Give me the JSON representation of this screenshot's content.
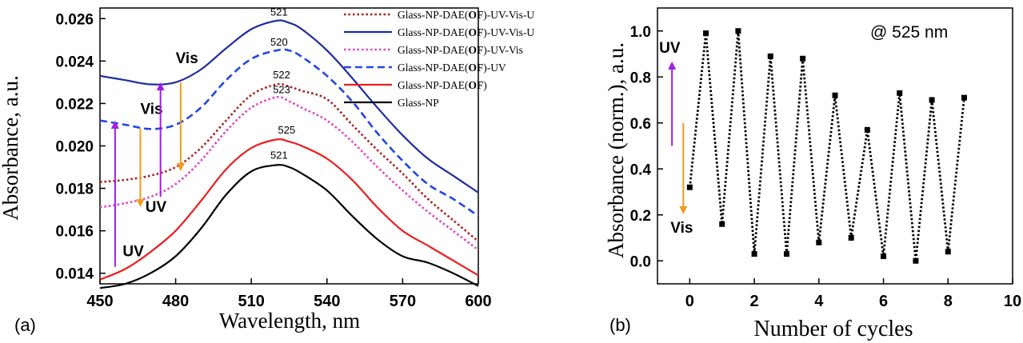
{
  "colors": {
    "dark_red": "#b01c1c",
    "navy": "#1f2c9e",
    "magenta": "#e83fbf",
    "blue": "#2147e6",
    "red": "#ee1c1c",
    "black": "#000000",
    "purple": "#a21ee0",
    "orange": "#f29a1f"
  },
  "chart_data": [
    {
      "type": "line",
      "panel_label": "(a)",
      "xlabel": "Wavelength, nm",
      "ylabel": "Absorbance, a.u.",
      "xlim": [
        450,
        600
      ],
      "ylim": [
        0.0135,
        0.0265
      ],
      "xticks": [
        "450",
        "480",
        "510",
        "540",
        "570",
        "600"
      ],
      "yticks": [
        "0.014",
        "0.016",
        "0.018",
        "0.020",
        "0.022",
        "0.024",
        "0.026"
      ],
      "legend_position": "top-right",
      "series": [
        {
          "name": "Glass-NP-DAE(OF)-UV-Vis-U",
          "name_parts": [
            "Glass-NP-DAE(",
            "OF",
            ")-UV-Vis-U"
          ],
          "style": "dotted",
          "color": "#b01c1c",
          "x": [
            450,
            460,
            470,
            480,
            490,
            500,
            510,
            520,
            525,
            530,
            540,
            550,
            560,
            570,
            580,
            590,
            600
          ],
          "y": [
            0.0183,
            0.0184,
            0.0186,
            0.019,
            0.0199,
            0.0212,
            0.0224,
            0.0229,
            0.0228,
            0.0226,
            0.0222,
            0.021,
            0.0198,
            0.0187,
            0.0175,
            0.0165,
            0.0155
          ]
        },
        {
          "name": "Glass-NP-DAE(OF)-UV-Vis-U",
          "name_parts": [
            "Glass-NP-DAE(",
            "OF",
            ")-UV-Vis-U"
          ],
          "style": "solid",
          "color": "#1f2c9e",
          "x": [
            450,
            460,
            470,
            480,
            490,
            500,
            510,
            520,
            525,
            530,
            540,
            550,
            560,
            570,
            580,
            590,
            600
          ],
          "y": [
            0.0233,
            0.0231,
            0.0229,
            0.023,
            0.0236,
            0.0246,
            0.0255,
            0.0259,
            0.0258,
            0.0255,
            0.0245,
            0.0232,
            0.0218,
            0.0205,
            0.0194,
            0.0186,
            0.0178
          ]
        },
        {
          "name": "Glass-NP-DAE(OF)-UV-Vis",
          "name_parts": [
            "Glass-NP-DAE(",
            "OF",
            ")-UV-Vis"
          ],
          "style": "dotted",
          "color": "#e83fbf",
          "x": [
            450,
            460,
            470,
            480,
            490,
            500,
            510,
            520,
            525,
            530,
            540,
            550,
            560,
            570,
            580,
            590,
            600
          ],
          "y": [
            0.0171,
            0.0173,
            0.0176,
            0.0182,
            0.0193,
            0.0207,
            0.0218,
            0.0223,
            0.0221,
            0.0218,
            0.0212,
            0.0202,
            0.019,
            0.0179,
            0.0169,
            0.016,
            0.0151
          ]
        },
        {
          "name": "Glass-NP-DAE(OF)-UV",
          "name_parts": [
            "Glass-NP-DAE(",
            "OF",
            ")-UV"
          ],
          "style": "dashed",
          "color": "#2147e6",
          "x": [
            450,
            460,
            470,
            480,
            490,
            500,
            510,
            520,
            525,
            530,
            540,
            550,
            560,
            570,
            580,
            590,
            600
          ],
          "y": [
            0.0212,
            0.021,
            0.0208,
            0.021,
            0.0218,
            0.0231,
            0.0241,
            0.0245,
            0.0245,
            0.0242,
            0.0233,
            0.0221,
            0.0206,
            0.0193,
            0.0182,
            0.0175,
            0.0167
          ]
        },
        {
          "name": "Glass-NP-DAE(OF)",
          "name_parts": [
            "Glass-NP-DAE(",
            "OF",
            ")"
          ],
          "style": "solid",
          "color": "#ee1c1c",
          "x": [
            450,
            460,
            470,
            480,
            490,
            500,
            510,
            520,
            525,
            530,
            540,
            550,
            560,
            570,
            580,
            590,
            600
          ],
          "y": [
            0.0137,
            0.0142,
            0.015,
            0.016,
            0.0174,
            0.0189,
            0.0199,
            0.0203,
            0.0202,
            0.02,
            0.0194,
            0.0184,
            0.0171,
            0.016,
            0.0153,
            0.0146,
            0.0139
          ]
        },
        {
          "name": "Glass-NP",
          "name_parts": [
            "Glass-NP",
            "",
            ""
          ],
          "style": "solid",
          "color": "#000000",
          "x": [
            450,
            460,
            470,
            480,
            490,
            500,
            510,
            520,
            525,
            530,
            540,
            550,
            560,
            570,
            580,
            590,
            600
          ],
          "y": [
            0.0133,
            0.0135,
            0.014,
            0.0148,
            0.0161,
            0.0177,
            0.0188,
            0.0191,
            0.019,
            0.0187,
            0.0179,
            0.0167,
            0.0156,
            0.0148,
            0.0145,
            0.014,
            0.0134
          ]
        }
      ],
      "peak_labels": [
        {
          "text": "521",
          "x": 521,
          "y": 0.02595
        },
        {
          "text": "520",
          "x": 521,
          "y": 0.02455
        },
        {
          "text": "522",
          "x": 522,
          "y": 0.023
        },
        {
          "text": "523",
          "x": 522,
          "y": 0.0223
        },
        {
          "text": "525",
          "x": 524,
          "y": 0.0204
        },
        {
          "text": "521",
          "x": 521,
          "y": 0.0192
        }
      ],
      "annotations": [
        {
          "text": "UV",
          "x": 459,
          "y": 0.0148,
          "color": "#a21ee0",
          "arrow": {
            "x": 456,
            "from": 0.0143,
            "to": 0.021
          }
        },
        {
          "text": "Vis",
          "x": 466,
          "y": 0.0215,
          "color": "#f29a1f",
          "arrow": {
            "x": 466,
            "from": 0.0208,
            "to": 0.0173
          }
        },
        {
          "text": "UV",
          "x": 468,
          "y": 0.0169,
          "color": "#a21ee0",
          "arrow": {
            "x": 474,
            "from": 0.0176,
            "to": 0.0228
          }
        },
        {
          "text": "Vis",
          "x": 480,
          "y": 0.0239,
          "color": "#f29a1f",
          "arrow": {
            "x": 482,
            "from": 0.023,
            "to": 0.019
          }
        }
      ]
    },
    {
      "type": "line",
      "panel_label": "(b)",
      "xlabel": "Number of cycles",
      "ylabel": "Absorbance (norm.), a.u.",
      "xlim": [
        -1,
        10
      ],
      "ylim": [
        -0.1,
        1.1
      ],
      "xticks": [
        "0",
        "2",
        "4",
        "6",
        "8",
        "10"
      ],
      "yticks": [
        "0.0",
        "0.2",
        "0.4",
        "0.6",
        "0.8",
        "1.0"
      ],
      "inline_title": "@ 525 nm",
      "series": [
        {
          "name": "",
          "style": "dotted-markers",
          "color": "#000000",
          "x": [
            0,
            0.5,
            1,
            1.5,
            2,
            2.5,
            3,
            3.5,
            4,
            4.5,
            5,
            5.5,
            6,
            6.5,
            7,
            7.5,
            8,
            8.5
          ],
          "y": [
            0.32,
            0.99,
            0.16,
            1.0,
            0.03,
            0.89,
            0.03,
            0.88,
            0.08,
            0.72,
            0.1,
            0.57,
            0.02,
            0.73,
            0.0,
            0.7,
            0.04,
            0.71
          ]
        }
      ],
      "annotations": [
        {
          "text": "UV",
          "color": "#a21ee0",
          "arrow_dir": "up",
          "arrow": {
            "x": -0.55,
            "from": 0.5,
            "to": 0.85
          }
        },
        {
          "text": "Vis",
          "color": "#f29a1f",
          "arrow_dir": "down",
          "arrow": {
            "x": -0.2,
            "from": 0.6,
            "to": 0.22
          }
        }
      ]
    }
  ]
}
